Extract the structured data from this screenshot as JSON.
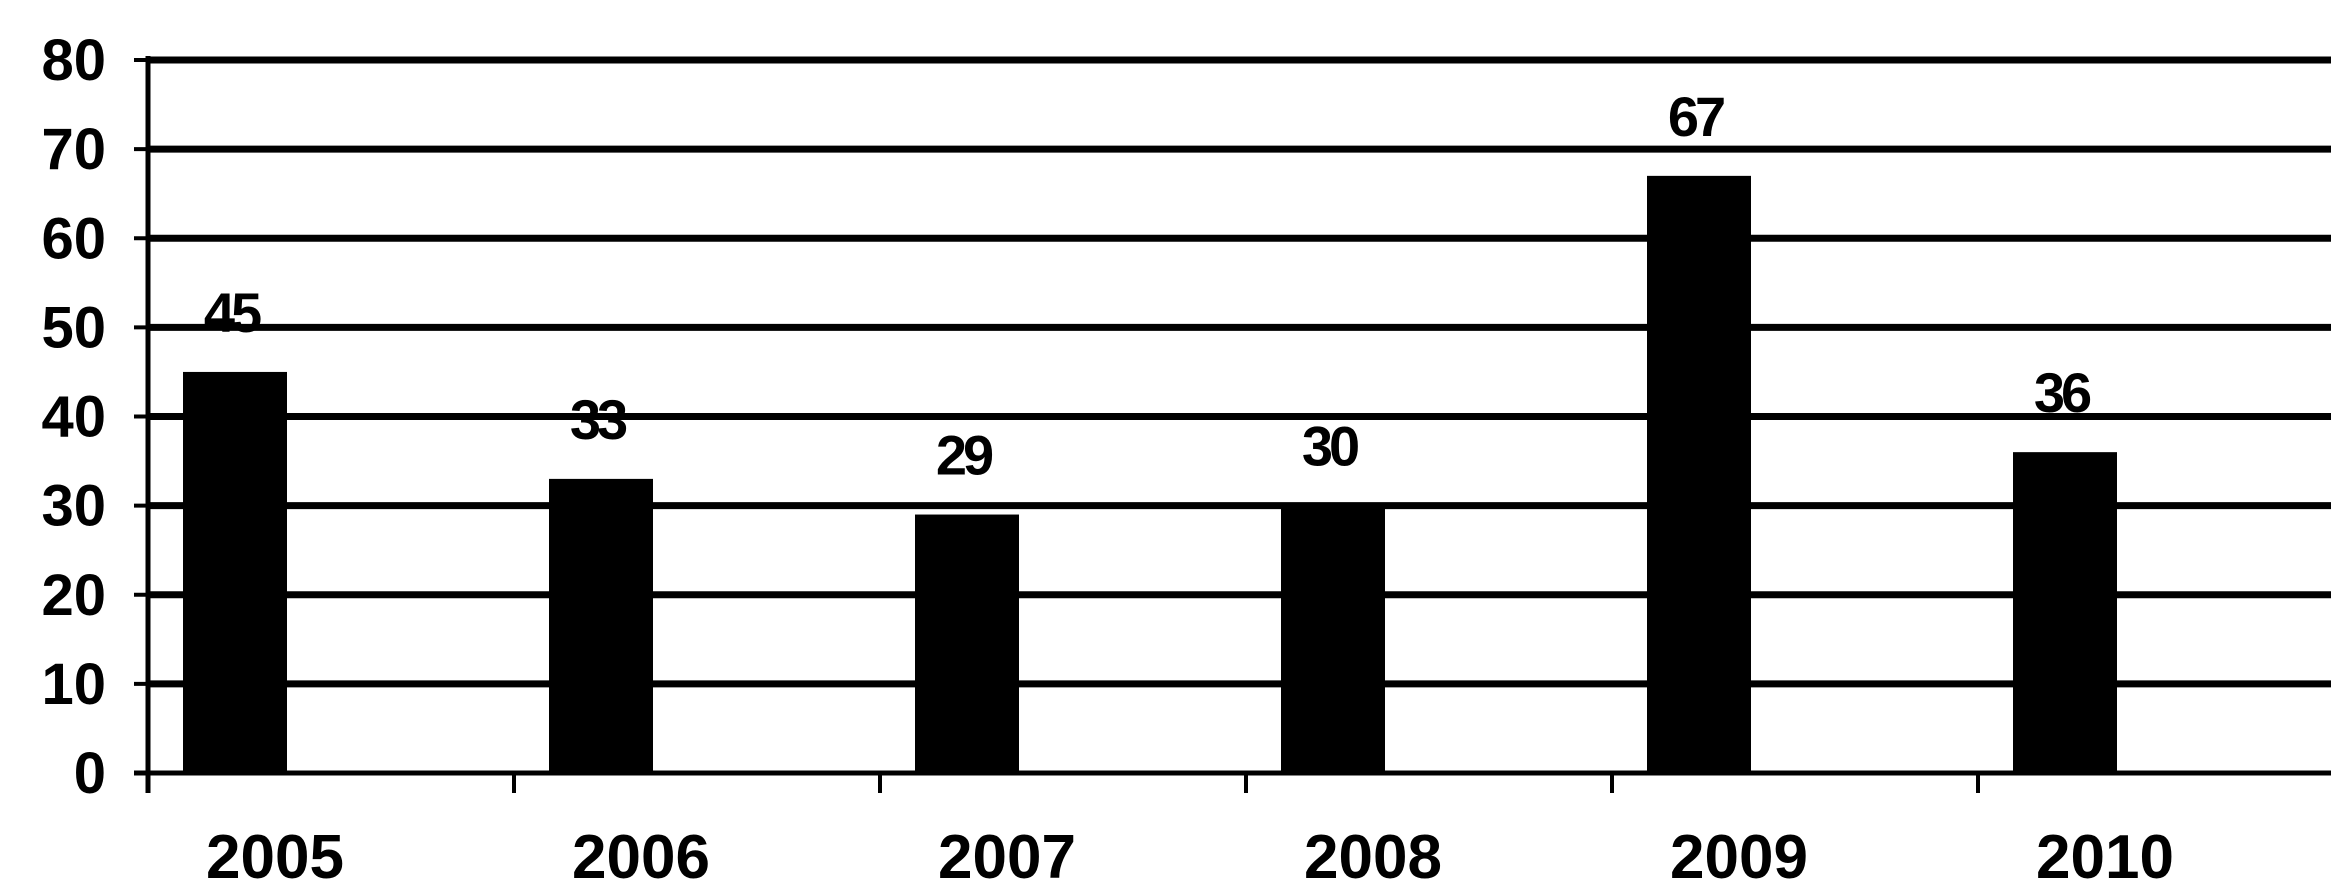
{
  "chart_data": {
    "type": "bar",
    "categories": [
      "2005",
      "2006",
      "2007",
      "2008",
      "2009",
      "2010"
    ],
    "values": [
      45,
      33,
      29,
      30,
      67,
      36
    ],
    "title": "",
    "xlabel": "",
    "ylabel": "",
    "ylim": [
      0,
      80
    ],
    "yticks": [
      "0",
      "10",
      "20",
      "30",
      "40",
      "50",
      "60",
      "70",
      "80"
    ],
    "data_labels": [
      "45",
      "33",
      "29",
      "30",
      "67",
      "36"
    ],
    "grid": true,
    "legend": "none",
    "colors": {
      "bar": "#000000",
      "gridline": "#000000",
      "axis": "#000000",
      "background": "#ffffff"
    }
  }
}
